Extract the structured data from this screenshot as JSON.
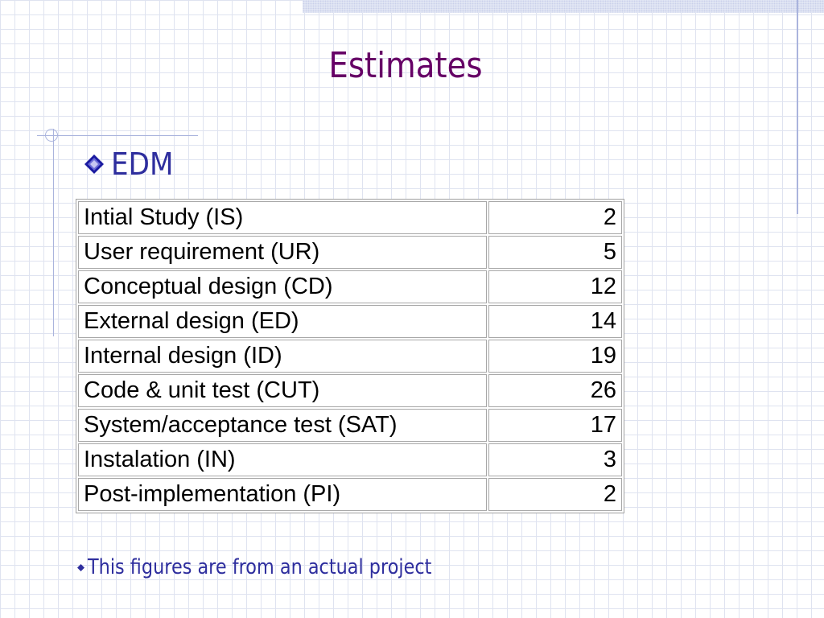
{
  "slide": {
    "title": "Estimates",
    "bullet": "EDM",
    "footnote": "This figures are from an actual project"
  },
  "table": {
    "rows": [
      {
        "label": "Intial Study (IS)",
        "value": "2"
      },
      {
        "label": "User requirement (UR)",
        "value": "5"
      },
      {
        "label": "Conceptual design (CD)",
        "value": "12"
      },
      {
        "label": "External design (ED)",
        "value": "14"
      },
      {
        "label": "Internal design (ID)",
        "value": "19"
      },
      {
        "label": "Code & unit test (CUT)",
        "value": "26"
      },
      {
        "label": "System/acceptance test (SAT)",
        "value": "17"
      },
      {
        "label": "Instalation (IN)",
        "value": "3"
      },
      {
        "label": "Post-implementation (PI)",
        "value": "2"
      }
    ]
  },
  "icons": {
    "bullet": "diamond-icon",
    "footnote_bullet": "small-diamond-icon"
  },
  "colors": {
    "title": "#660066",
    "bullet_text": "#2e2e9e",
    "diamond": "#1a1aa0",
    "decor_line": "#aab4dd"
  }
}
